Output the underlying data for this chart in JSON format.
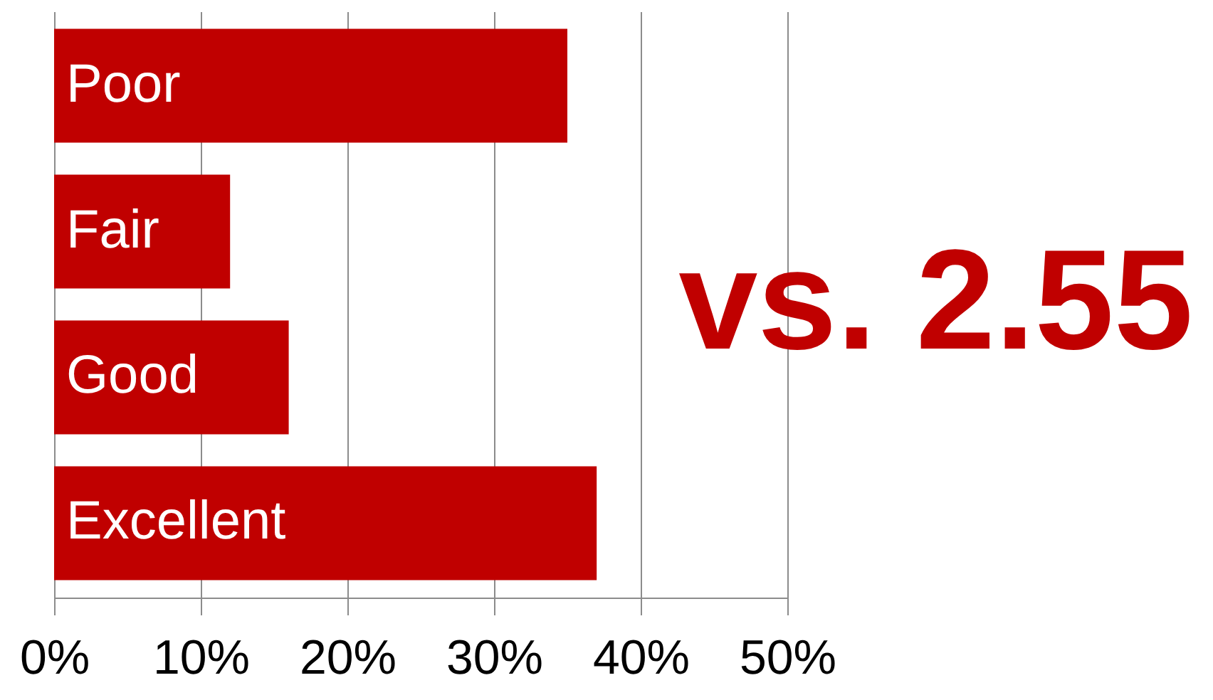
{
  "chart_data": {
    "type": "bar",
    "orientation": "horizontal",
    "categories": [
      "Poor",
      "Fair",
      "Good",
      "Excellent"
    ],
    "values": [
      35,
      12,
      16,
      37
    ],
    "color": "#c00000",
    "xlim": [
      0,
      50
    ],
    "xticks": [
      {
        "value": 0,
        "label": "0%"
      },
      {
        "value": 10,
        "label": "10%"
      },
      {
        "value": 20,
        "label": "20%"
      },
      {
        "value": 30,
        "label": "30%"
      },
      {
        "value": 40,
        "label": "40%"
      },
      {
        "value": 50,
        "label": "50%"
      }
    ],
    "grid": "x",
    "annotations": [
      "vs. 2.55"
    ]
  }
}
